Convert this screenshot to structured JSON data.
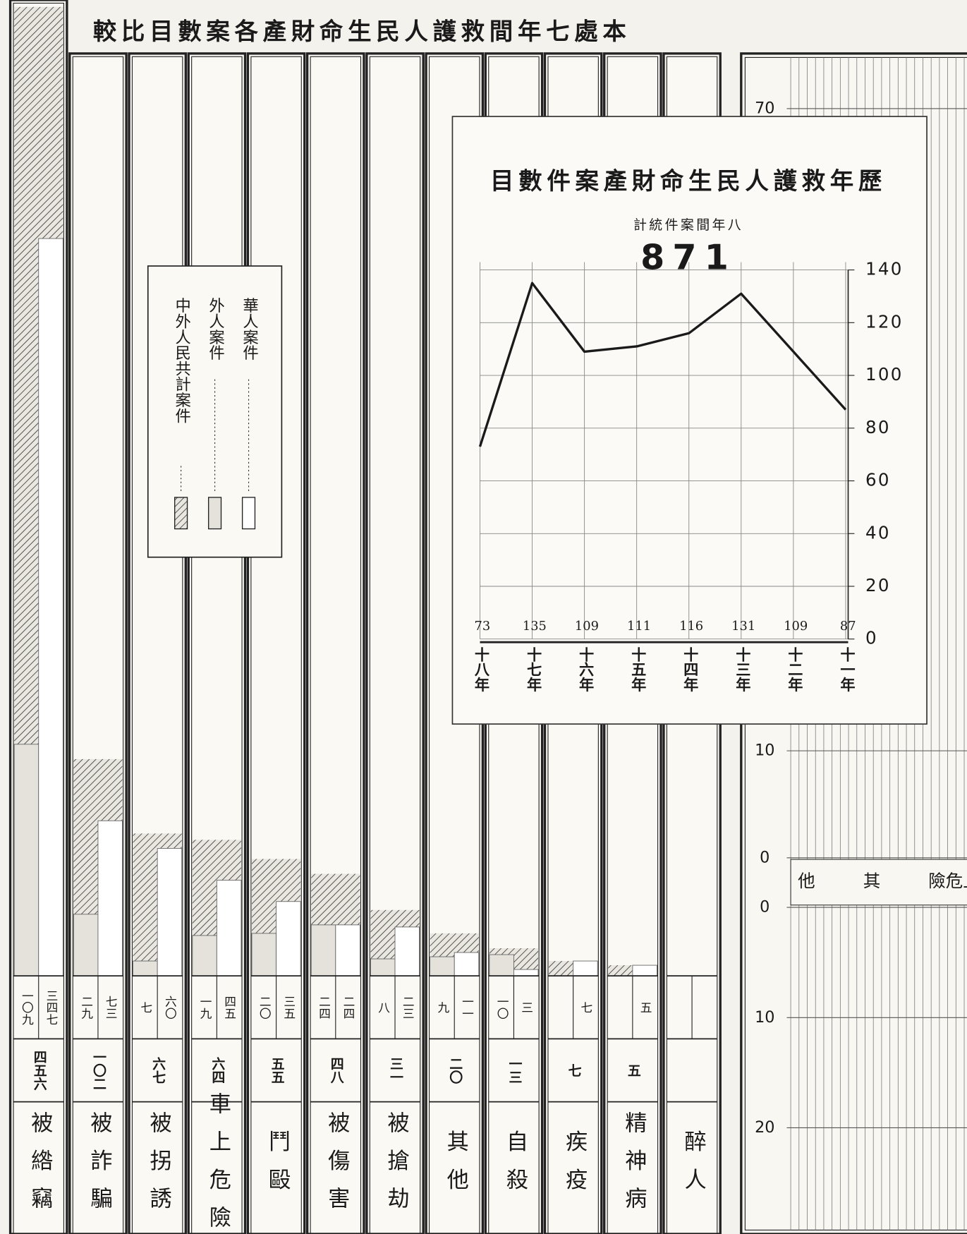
{
  "title": "較比目數案各產財命生民人護救間年七處本",
  "chart_data": [
    {
      "type": "bar",
      "categories": [
        "被綹竊",
        "被詐騙",
        "被拐誘",
        "車上危險",
        "鬥毆",
        "被傷害",
        "被搶劫",
        "其他",
        "自殺",
        "疾疫",
        "精神病",
        "醉人"
      ],
      "series": [
        {
          "name": "外人案件",
          "color": "#e4e2da",
          "values": [
            109,
            29,
            7,
            19,
            20,
            24,
            8,
            9,
            10,
            null,
            null,
            null
          ],
          "value_labels": [
            "一〇九",
            "二九",
            "七",
            "一九",
            "二〇",
            "二四",
            "八",
            "九",
            "一〇",
            null,
            null,
            null
          ]
        },
        {
          "name": "華人案件",
          "color": "#ffffff",
          "values": [
            347,
            73,
            60,
            45,
            35,
            24,
            23,
            11,
            3,
            7,
            5,
            null
          ],
          "value_labels": [
            "三四七",
            "七三",
            "六〇",
            "四五",
            "三五",
            "二四",
            "二三",
            "一一",
            "三",
            "七",
            "五",
            null
          ]
        },
        {
          "name": "中外人民共計案件",
          "color": "#555555",
          "values": [
            456,
            102,
            67,
            64,
            55,
            48,
            31,
            20,
            13,
            7,
            5,
            null
          ],
          "value_labels": [
            "四五六",
            "一〇二",
            "六七",
            "六四",
            "五五",
            "四八",
            "三一",
            "二〇",
            "一三",
            "七",
            "五",
            null
          ]
        }
      ]
    },
    {
      "type": "line",
      "title": "目數件案產財命生民人護救年歷",
      "subtitle": "計統件案間年八",
      "total": 871,
      "categories": [
        "十八年",
        "十七年",
        "十六年",
        "十五年",
        "十四年",
        "十三年",
        "十二年",
        "十一年"
      ],
      "values": [
        73,
        135,
        109,
        111,
        116,
        131,
        109,
        87
      ],
      "color": "#1a1a1a",
      "ylim": [
        0,
        140
      ],
      "yticks": [
        0,
        20,
        40,
        60,
        80,
        100,
        120,
        140
      ],
      "grid": true
    },
    {
      "type": "bar",
      "categories": [
        "他",
        "其",
        "險危上車"
      ],
      "yticks": [
        0,
        10,
        70
      ],
      "y2ticks": [
        0,
        10,
        20
      ]
    }
  ]
}
